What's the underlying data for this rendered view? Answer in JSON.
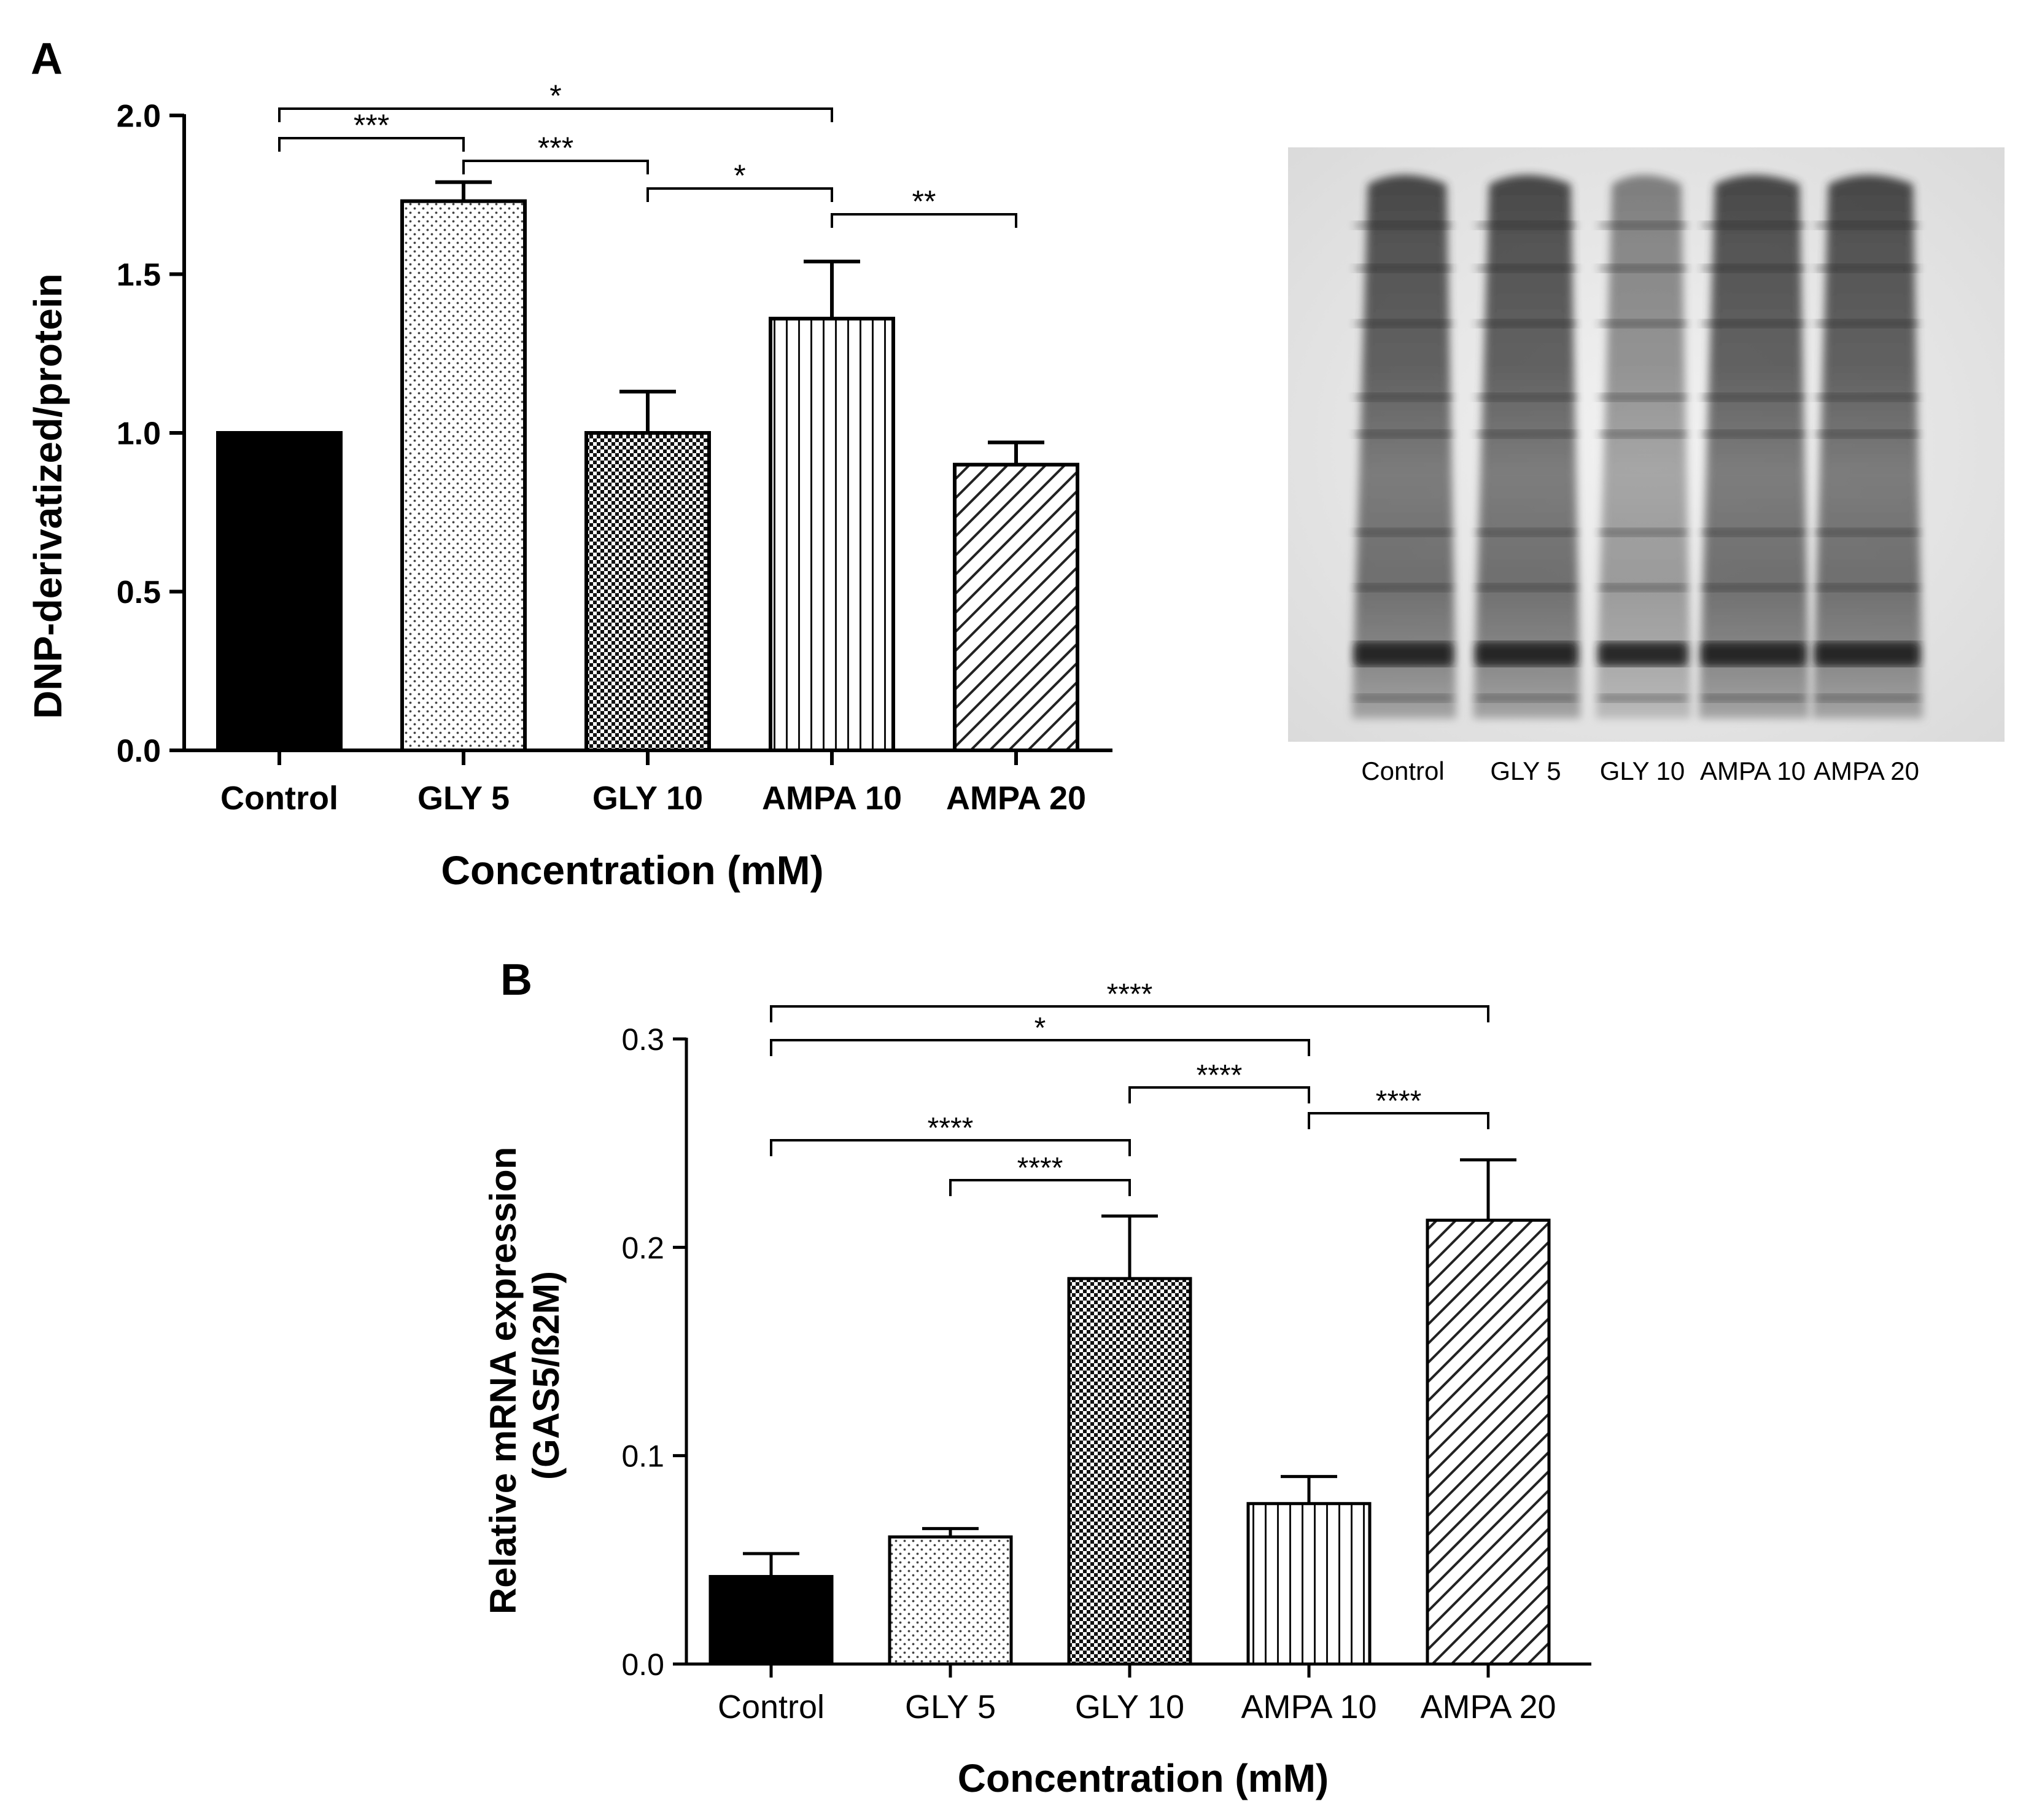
{
  "chart_data": [
    {
      "type": "bar",
      "panel": "A",
      "title": "",
      "xlabel": "Concentration (mM)",
      "ylabel": "DNP-derivatized/protein",
      "ylim": [
        0,
        2.0
      ],
      "yticks": [
        "0.0",
        "0.5",
        "1.0",
        "1.5",
        "2.0"
      ],
      "categories": [
        "Control",
        "GLY 5",
        "GLY 10",
        "AMPA 10",
        "AMPA 20"
      ],
      "values": [
        1.0,
        1.73,
        1.0,
        1.36,
        0.9
      ],
      "errors": [
        0,
        0.06,
        0.13,
        0.18,
        0.07
      ],
      "patterns": [
        "solid",
        "dots",
        "checker",
        "vlines",
        "diag"
      ],
      "significance": [
        {
          "from": 0,
          "to": 1,
          "label": "***"
        },
        {
          "from": 0,
          "to": 3,
          "label": "*"
        },
        {
          "from": 1,
          "to": 2,
          "label": "***"
        },
        {
          "from": 2,
          "to": 3,
          "label": "*"
        },
        {
          "from": 3,
          "to": 4,
          "label": "**"
        }
      ]
    },
    {
      "type": "bar",
      "panel": "B",
      "title": "",
      "xlabel": "Concentration (mM)",
      "ylabel": [
        "Relative mRNA expression",
        "(GAS5/ß2M)"
      ],
      "ylim": [
        0,
        0.3
      ],
      "yticks": [
        "0.0",
        "0.1",
        "0.2",
        "0.3"
      ],
      "categories": [
        "Control",
        "GLY 5",
        "GLY 10",
        "AMPA 10",
        "AMPA 20"
      ],
      "values": [
        0.042,
        0.061,
        0.185,
        0.077,
        0.213
      ],
      "errors": [
        0.011,
        0.004,
        0.03,
        0.013,
        0.029
      ],
      "patterns": [
        "solid",
        "dots",
        "checker",
        "vlines",
        "diag"
      ],
      "significance": [
        {
          "from": 0,
          "to": 4,
          "label": "****"
        },
        {
          "from": 0,
          "to": 3,
          "label": "*"
        },
        {
          "from": 2,
          "to": 3,
          "label": "****"
        },
        {
          "from": 3,
          "to": 4,
          "label": "****"
        },
        {
          "from": 0,
          "to": 2,
          "label": "****"
        },
        {
          "from": 1,
          "to": 2,
          "label": "****"
        }
      ]
    }
  ],
  "blot": {
    "lanes": [
      "Control",
      "GLY 5",
      "GLY 10",
      "AMPA 10",
      "AMPA 20"
    ]
  }
}
